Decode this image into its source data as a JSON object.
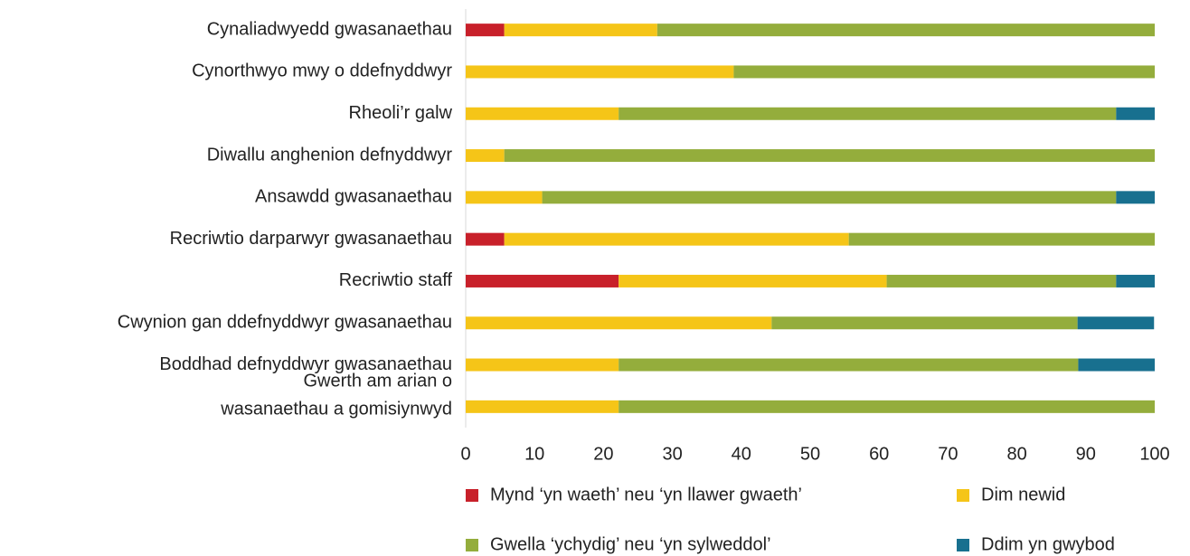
{
  "chart_data": {
    "type": "stacked-bar-horizontal",
    "categories": [
      "Cynaliadwyedd gwasanaethau",
      "Cynorthwyo mwy o ddefnyddwyr",
      "Rheoli’r galw",
      "Diwallu anghenion defnyddwyr",
      "Ansawdd gwasanaethau",
      "Recriwtio darparwyr gwasanaethau",
      "Recriwtio staff",
      "Cwynion gan ddefnyddwyr gwasanaethau",
      "Boddhad defnyddwyr gwasanaethau",
      "Gwerth am arian o\nwasanaethau a gomisiynwyd"
    ],
    "series": [
      {
        "name": "Mynd ‘yn waeth’ neu ‘yn llawer gwaeth’",
        "color": "#c8202a",
        "values": [
          5.6,
          0,
          0,
          0,
          0,
          5.6,
          22.2,
          0,
          0,
          0
        ]
      },
      {
        "name": "Dim newid",
        "color": "#f5c518",
        "values": [
          22.2,
          38.9,
          22.2,
          5.6,
          11.1,
          50.0,
          38.9,
          44.4,
          22.2,
          22.2
        ]
      },
      {
        "name": "Gwella ‘ychydig’ neu ‘yn sylweddol’",
        "color": "#94ad3c",
        "values": [
          72.2,
          61.1,
          72.2,
          94.4,
          83.3,
          44.4,
          33.3,
          44.4,
          66.7,
          77.8
        ]
      },
      {
        "name": "Ddim yn gwybod",
        "color": "#18708f",
        "values": [
          0,
          0,
          5.6,
          0,
          5.6,
          0,
          5.6,
          11.1,
          11.1,
          0
        ]
      }
    ],
    "xlim": [
      0,
      100
    ],
    "xticks": [
      0,
      10,
      20,
      30,
      40,
      50,
      60,
      70,
      80,
      90,
      100
    ],
    "grid": false
  }
}
